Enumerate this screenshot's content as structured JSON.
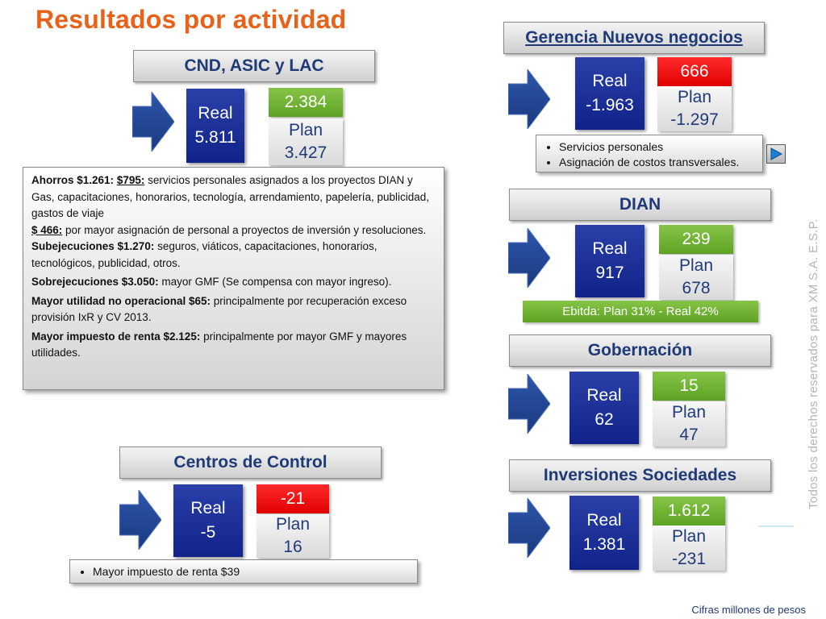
{
  "title": "Resultados por actividad",
  "side_text": "Todos los derechos reservados para XM S.A. E.S.P.",
  "footer": "Cifras millones de pesos",
  "cards": {
    "cnd": {
      "header": "CND, ASIC y LAC",
      "real_label": "Real",
      "real_value": "5.811",
      "diff": "2.384",
      "diff_color": "green",
      "plan_label": "Plan",
      "plan_value": "3.427"
    },
    "centros": {
      "header": "Centros de Control",
      "real_label": "Real",
      "real_value": "-5",
      "diff": "-21",
      "diff_color": "red",
      "plan_label": "Plan",
      "plan_value": "16"
    },
    "gerencia": {
      "header": "Gerencia Nuevos negocios",
      "real_label": "Real",
      "real_value": "-1.963",
      "diff": "666",
      "diff_color": "red",
      "plan_label": "Plan",
      "plan_value": "-1.297"
    },
    "dian": {
      "header": "DIAN",
      "real_label": "Real",
      "real_value": "917",
      "diff": "239",
      "diff_color": "green",
      "plan_label": "Plan",
      "plan_value": "678"
    },
    "gobernacion": {
      "header": "Gobernación",
      "real_label": "Real",
      "real_value": "62",
      "diff": "15",
      "diff_color": "green",
      "plan_label": "Plan",
      "plan_value": "47"
    },
    "inversiones": {
      "header": "Inversiones Sociedades",
      "real_label": "Real",
      "real_value": "1.381",
      "diff": "1.612",
      "diff_color": "green",
      "plan_label": "Plan",
      "plan_value": "-231"
    }
  },
  "gerencia_notes": [
    "Servicios personales",
    "Asignación de costos transversales."
  ],
  "centros_notes": [
    "Mayor impuesto de renta $39"
  ],
  "ebitda": "Ebitda: Plan 31% - Real 42%",
  "cnd_notes": {
    "ahorros_label": "Ahorros $1.261:",
    "ahorros_amount1": "$795:",
    "ahorros_text1": " servicios personales asignados a los proyectos DIAN y Gas, capacitaciones, honorarios, tecnología, arrendamiento, papelería, publicidad, gastos de viaje",
    "ahorros_amount2": "$ 466:",
    "ahorros_text2": " por mayor asignación de personal a proyectos de inversión y resoluciones.",
    "subejecuciones_label": "Subejecuciones $1.270:",
    "subejecuciones_text": " seguros, viáticos, capacitaciones, honorarios, tecnológicos, publicidad, otros.",
    "sobrejecuciones_label": "Sobrejecuciones $3.050:",
    "sobrejecuciones_text": " mayor GMF (Se compensa con mayor ingreso).",
    "utilidad_label": "Mayor utilidad no operacional $65:",
    "utilidad_text": " principalmente por recuperación exceso provisión IxR y CV 2013.",
    "impuesto_label": "Mayor impuesto de renta $2.125:",
    "impuesto_text": " principalmente por mayor GMF y mayores utilidades."
  },
  "colors": {
    "title": "#e8621a",
    "header_text": "#1f3a78",
    "real_box": "#1a2f96",
    "positive": "#6fb333",
    "negative": "#ff1a1a"
  },
  "icons": {
    "arrow": "right-block-arrow",
    "play": "play-button"
  }
}
